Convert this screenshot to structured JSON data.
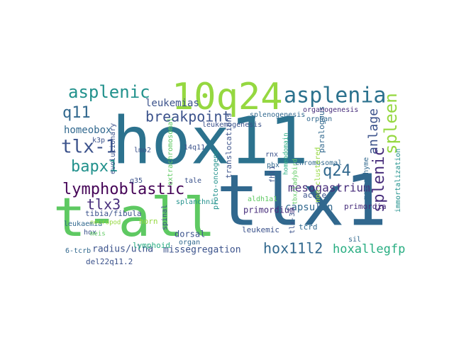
{
  "palette": {
    "navy": "#3b528b",
    "teal": "#2c728e",
    "deep": "#450457",
    "green": "#5ec962",
    "lime": "#95d840",
    "purple": "#472d7b",
    "blue": "#31688e",
    "mid": "#21918c",
    "cyan": "#27ad81",
    "yellow": "#bddf26"
  },
  "words": [
    {
      "text": "hox11",
      "color": "#2c728e"
    },
    {
      "text": "tlx1",
      "color": "#31688e"
    },
    {
      "text": "t-all",
      "color": "#5ec962"
    },
    {
      "text": "10q24",
      "color": "#95d840"
    },
    {
      "text": "asplenia",
      "color": "#2c728e"
    },
    {
      "text": "asplenic",
      "color": "#21918c"
    },
    {
      "text": "lymphoblastic",
      "color": "#450457"
    },
    {
      "text": "breakpoint",
      "color": "#3b528b"
    },
    {
      "text": "tlx-1",
      "color": "#3b528b"
    },
    {
      "text": "q11",
      "color": "#31688e"
    },
    {
      "text": "bapx1",
      "color": "#21918c"
    },
    {
      "text": "leukemias",
      "color": "#3b528b"
    },
    {
      "text": "homeobox",
      "color": "#31688e"
    },
    {
      "text": "tlx3",
      "color": "#472d7b"
    },
    {
      "text": "q24",
      "color": "#31688e"
    },
    {
      "text": "anlage",
      "color": "#3b528b"
    },
    {
      "text": "spleen",
      "color": "#95d840"
    },
    {
      "text": "splenic",
      "color": "#472d7b"
    },
    {
      "text": "mesogastrium",
      "color": "#472d7b"
    },
    {
      "text": "capsulin",
      "color": "#31688e"
    },
    {
      "text": "hox11l2",
      "color": "#31688e"
    },
    {
      "text": "hoxallegfp",
      "color": "#27ad81"
    },
    {
      "text": "radius/ulna",
      "color": "#3b528b"
    },
    {
      "text": "missegregation",
      "color": "#3b528b"
    },
    {
      "text": "leukemic",
      "color": "#3b528b"
    },
    {
      "text": "primordium",
      "color": "#472d7b"
    },
    {
      "text": "primordia",
      "color": "#472d7b"
    },
    {
      "text": "immortalization",
      "color": "#21918c"
    },
    {
      "text": "leukaemia",
      "color": "#31688e"
    },
    {
      "text": "tibia/fibula",
      "color": "#3b528b"
    },
    {
      "text": "lymphoid",
      "color": "#27ad81"
    },
    {
      "text": "dorsal",
      "color": "#3b528b"
    },
    {
      "text": "organ",
      "color": "#31688e"
    },
    {
      "text": "tcrd",
      "color": "#31688e"
    },
    {
      "text": "sil",
      "color": "#31688e"
    },
    {
      "text": "horn",
      "color": "#95d840"
    },
    {
      "text": "hox",
      "color": "#3b528b"
    },
    {
      "text": "6-tcrb",
      "color": "#31688e"
    },
    {
      "text": "del22q11.2",
      "color": "#3b528b"
    },
    {
      "text": "aldh1a1",
      "color": "#5ec962"
    },
    {
      "text": "splanchnic",
      "color": "#21918c"
    },
    {
      "text": "mesenchyme",
      "color": "#31688e"
    },
    {
      "text": "chromosomal",
      "color": "#31688e"
    },
    {
      "text": "paralogous",
      "color": "#31688e"
    },
    {
      "text": "acute",
      "color": "#3b528b"
    },
    {
      "text": "organogenesis",
      "color": "#472d7b"
    },
    {
      "text": "orphan",
      "color": "#31688e"
    },
    {
      "text": "splenogenesis",
      "color": "#31688e"
    },
    {
      "text": "leukemogenesis",
      "color": "#3b528b"
    },
    {
      "text": "translocations",
      "color": "#3b528b"
    },
    {
      "text": "rnx",
      "color": "#3b528b"
    },
    {
      "text": "pbx",
      "color": "#31688e"
    },
    {
      "text": "fhl1",
      "color": "#3b528b"
    },
    {
      "text": "proto-oncogene",
      "color": "#21918c"
    },
    {
      "text": "evolutionary",
      "color": "#3b528b"
    },
    {
      "text": "lmo2",
      "color": "#3b528b"
    },
    {
      "text": "q35",
      "color": "#3b528b"
    },
    {
      "text": "tale",
      "color": "#3b528b"
    },
    {
      "text": "14q11",
      "color": "#3b528b"
    },
    {
      "text": "extrachromosomal",
      "color": "#5ec962"
    },
    {
      "text": "spinal",
      "color": "#3b528b"
    },
    {
      "text": "k3p",
      "color": "#3b528b"
    },
    {
      "text": "neuropod",
      "color": "#95d840"
    },
    {
      "text": "meis",
      "color": "#5ec962"
    },
    {
      "text": "homeodomain",
      "color": "#27ad81"
    },
    {
      "text": "tlx-3",
      "color": "#3b528b"
    },
    {
      "text": "non-clustered",
      "color": "#95d840"
    },
    {
      "text": "tbx/ladybird",
      "color": "#5ec962"
    }
  ]
}
